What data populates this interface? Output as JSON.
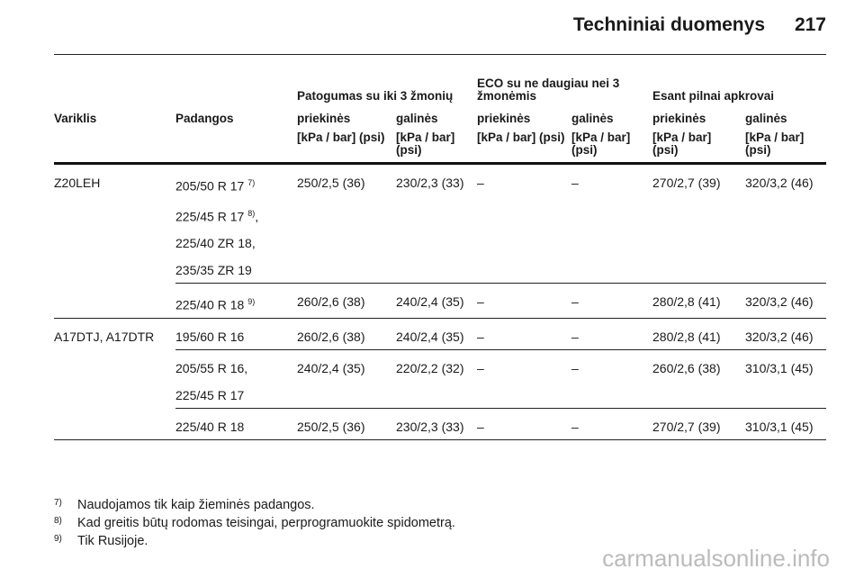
{
  "header": {
    "title": "Techniniai duomenys",
    "page": "217"
  },
  "table": {
    "groups": [
      "Patogumas su iki 3 žmonių",
      "ECO su ne daugiau nei 3 žmonėmis",
      "Esant pilnai apkrovai"
    ],
    "columns": [
      "Variklis",
      "Padangos",
      "priekinės",
      "galinės",
      "priekinės",
      "galinės",
      "priekinės",
      "galinės"
    ],
    "units": [
      "[kPa / bar] (psi)",
      "[kPa / bar] (psi)",
      "[kPa / bar] (psi)",
      "[kPa / bar] (psi)",
      "[kPa / bar] (psi)",
      "[kPa / bar] (psi)"
    ],
    "rows": [
      {
        "engine": "Z20LEH",
        "tyres": [
          {
            "text": "205/50 R 17",
            "sup": "7)"
          },
          {
            "text": "225/45 R 17",
            "sup": "8)",
            "after": ","
          },
          {
            "text": "225/40 ZR 18,"
          },
          {
            "text": "235/35 ZR 19"
          }
        ],
        "values": [
          "250/2,5 (36)",
          "230/2,3 (33)",
          "–",
          "–",
          "270/2,7 (39)",
          "320/3,2 (46)"
        ]
      },
      {
        "tyres": [
          {
            "text": "225/40 R 18",
            "sup": "9)"
          }
        ],
        "values": [
          "260/2,6 (38)",
          "240/2,4 (35)",
          "–",
          "–",
          "280/2,8 (41)",
          "320/3,2 (46)"
        ]
      },
      {
        "engine": "A17DTJ, A17DTR",
        "tyres": [
          {
            "text": "195/60 R 16"
          }
        ],
        "values": [
          "260/2,6 (38)",
          "240/2,4 (35)",
          "–",
          "–",
          "280/2,8 (41)",
          "320/3,2 (46)"
        ]
      },
      {
        "tyres": [
          {
            "text": "205/55 R 16,"
          },
          {
            "text": "225/45 R 17"
          }
        ],
        "values": [
          "240/2,4 (35)",
          "220/2,2 (32)",
          "–",
          "–",
          "260/2,6 (38)",
          "310/3,1 (45)"
        ]
      },
      {
        "tyres": [
          {
            "text": "225/40 R 18"
          }
        ],
        "values": [
          "250/2,5 (36)",
          "230/2,3 (33)",
          "–",
          "–",
          "270/2,7 (39)",
          "310/3,1 (45)"
        ]
      }
    ]
  },
  "footnotes": [
    {
      "mark": "7)",
      "text": "Naudojamos tik kaip žieminės padangos."
    },
    {
      "mark": "8)",
      "text": "Kad greitis būtų rodomas teisingai, perprogramuokite spidometrą."
    },
    {
      "mark": "9)",
      "text": "Tik Rusijoje."
    }
  ],
  "watermark": "carmanualsonline.info"
}
